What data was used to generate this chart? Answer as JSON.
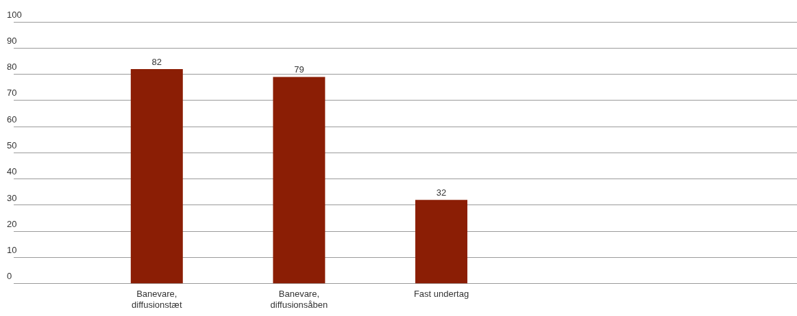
{
  "chart_data": {
    "type": "bar",
    "categories": [
      "Banevare, diffusionstæt",
      "Banevare, diffusionsåben",
      "Fast undertag",
      null,
      null
    ],
    "values": [
      82,
      79,
      32,
      null,
      null
    ],
    "color": "#8b1e05",
    "ylim": [
      0,
      100
    ],
    "yticks": [
      0,
      10,
      20,
      30,
      40,
      50,
      60,
      70,
      80,
      90,
      100
    ],
    "grid": "y",
    "data_labels": true,
    "legend": false
  }
}
